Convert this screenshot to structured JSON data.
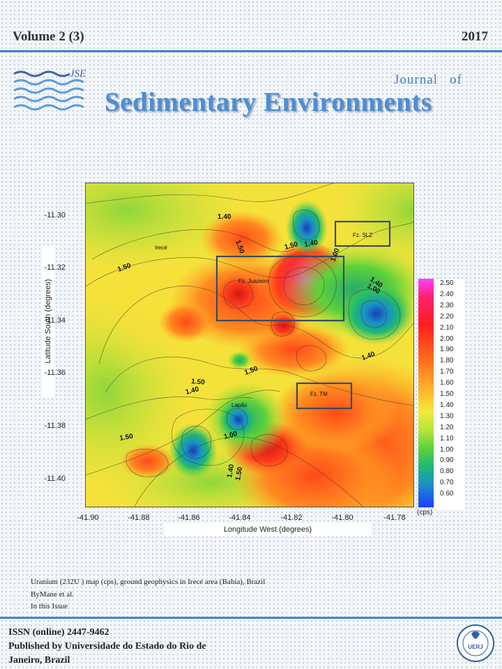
{
  "header": {
    "volume": "Volume 2 (3)",
    "year": "2017"
  },
  "masthead": {
    "logo_text": "JSE",
    "journal_of": "Journal   of",
    "title": "Sedimentary Environments"
  },
  "figure": {
    "y_axis_label": "Latitude South (degrees)",
    "x_axis_label": "Longitude West (degrees)",
    "y_ticks": [
      "-11.30",
      "-11.32",
      "-11.34",
      "-11.36",
      "-11.38",
      "-11.40"
    ],
    "x_ticks": [
      "-41.90",
      "-41.88",
      "-41.86",
      "-41.84",
      "-41.82",
      "-41.80",
      "-41.78"
    ],
    "colorbar_ticks": [
      "2.50",
      "2.40",
      "2.30",
      "2.20",
      "2.10",
      "2.00",
      "1.90",
      "1.80",
      "1.70",
      "1.60",
      "1.50",
      "1.40",
      "1.30",
      "1.20",
      "1.10",
      "1.00",
      "0.90",
      "0.80",
      "0.70",
      "0.60"
    ],
    "colorbar_unit": "(cps)",
    "place_labels": {
      "irece": "Irecé",
      "lapao": "Lapão"
    },
    "zone_labels": {
      "slz": "Fz. SLZ",
      "juazeiro": "Fz. Juazeiro",
      "tm": "Fz. TM"
    },
    "contour_labels": {
      "c140_top": "1.40",
      "c150_top": "1.50",
      "c150_a": "1.50",
      "c140_b": "1.40",
      "c100_a": "1.00",
      "c150_left": "1.50",
      "c140_r": "1.40",
      "c100_r": "1.00",
      "c140_mid_r": "1.40",
      "c150_mid": "1.50",
      "c150_mid2": "1.50",
      "c140_left": "1.40",
      "c100_low": "1.00",
      "c150_bl": "1.50",
      "c140_bot": "1.40",
      "c150_bot": "1.50"
    }
  },
  "caption": {
    "line1": "Uranium (232U ) map (cps), ground geophysics in Irecé area (Bahia), Brazil",
    "line2": "ByMane et al.",
    "line3": "In this Issue"
  },
  "footer": {
    "issn": "ISSN (online) 2447-9462",
    "publisher_line1": "Published by Universidade do Estado do Rio de",
    "publisher_line2": "Janeiro, Brazil",
    "seal_text": "UERJ"
  },
  "colors": {
    "accent": "#3b82d4",
    "title": "#4a8fd8"
  }
}
